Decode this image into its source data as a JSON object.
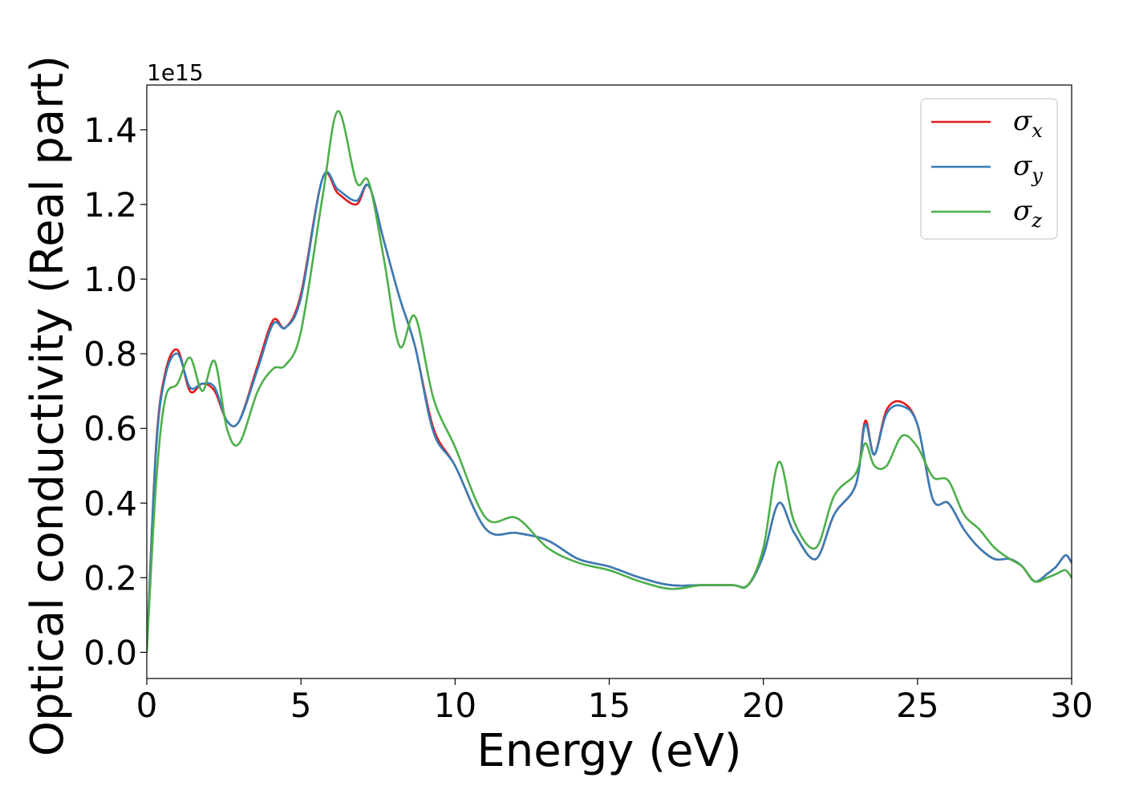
{
  "chart_data": {
    "type": "line",
    "xlabel": "Energy (eV)",
    "ylabel": "Optical conductivity (Real part)",
    "y_offset_text": "1e15",
    "xlim": [
      0,
      30
    ],
    "ylim": [
      -0.07,
      1.52
    ],
    "y_scale_factor": 1000000000000000.0,
    "x_ticks": [
      0,
      5,
      10,
      15,
      20,
      25,
      30
    ],
    "x_tick_labels": [
      "0",
      "5",
      "10",
      "15",
      "20",
      "25",
      "30"
    ],
    "y_ticks": [
      0.0,
      0.2,
      0.4,
      0.6,
      0.8,
      1.0,
      1.2,
      1.4
    ],
    "y_tick_labels": [
      "0.0",
      "0.2",
      "0.4",
      "0.6",
      "0.8",
      "1.0",
      "1.2",
      "1.4"
    ],
    "grid": false,
    "legend_position": "top-right",
    "x": [
      0,
      0.3,
      0.6,
      1.0,
      1.4,
      1.8,
      2.2,
      2.6,
      3.0,
      3.6,
      4.1,
      4.5,
      5.0,
      5.7,
      6.2,
      6.8,
      7.2,
      7.7,
      8.2,
      8.7,
      9.3,
      10.0,
      11.0,
      12.0,
      13.0,
      14.0,
      15.0,
      16.0,
      17.0,
      18.0,
      19.0,
      19.5,
      20.0,
      20.5,
      21.0,
      21.7,
      22.3,
      23.0,
      23.3,
      23.6,
      24.0,
      24.5,
      25.0,
      25.5,
      26.0,
      26.5,
      27.0,
      27.5,
      28.0,
      28.4,
      28.8,
      29.2,
      29.5,
      29.8,
      30.0
    ],
    "series": [
      {
        "name": "σ",
        "subscript": "x",
        "color": "#e41a1c",
        "values": [
          0.0,
          0.55,
          0.75,
          0.81,
          0.7,
          0.72,
          0.7,
          0.62,
          0.62,
          0.77,
          0.89,
          0.87,
          0.96,
          1.27,
          1.23,
          1.2,
          1.25,
          1.1,
          0.95,
          0.82,
          0.6,
          0.5,
          0.33,
          0.32,
          0.3,
          0.25,
          0.23,
          0.2,
          0.18,
          0.18,
          0.18,
          0.18,
          0.26,
          0.4,
          0.32,
          0.25,
          0.37,
          0.45,
          0.62,
          0.53,
          0.65,
          0.67,
          0.61,
          0.41,
          0.4,
          0.33,
          0.28,
          0.25,
          0.25,
          0.23,
          0.19,
          0.21,
          0.23,
          0.26,
          0.24
        ]
      },
      {
        "name": "σ",
        "subscript": "y",
        "color": "#377eb8",
        "values": [
          0.0,
          0.54,
          0.74,
          0.8,
          0.71,
          0.72,
          0.71,
          0.62,
          0.62,
          0.76,
          0.88,
          0.87,
          0.95,
          1.27,
          1.24,
          1.21,
          1.25,
          1.1,
          0.95,
          0.82,
          0.59,
          0.5,
          0.33,
          0.32,
          0.3,
          0.25,
          0.23,
          0.2,
          0.18,
          0.18,
          0.18,
          0.18,
          0.26,
          0.4,
          0.32,
          0.25,
          0.37,
          0.45,
          0.61,
          0.53,
          0.64,
          0.66,
          0.61,
          0.41,
          0.4,
          0.33,
          0.28,
          0.25,
          0.25,
          0.23,
          0.19,
          0.21,
          0.23,
          0.26,
          0.24
        ]
      },
      {
        "name": "σ",
        "subscript": "z",
        "color": "#4daf4a",
        "values": [
          0.0,
          0.45,
          0.68,
          0.72,
          0.79,
          0.7,
          0.78,
          0.6,
          0.56,
          0.7,
          0.76,
          0.77,
          0.86,
          1.22,
          1.45,
          1.26,
          1.26,
          1.05,
          0.82,
          0.9,
          0.68,
          0.55,
          0.36,
          0.36,
          0.28,
          0.24,
          0.22,
          0.19,
          0.17,
          0.18,
          0.18,
          0.18,
          0.28,
          0.51,
          0.35,
          0.28,
          0.42,
          0.48,
          0.56,
          0.5,
          0.5,
          0.58,
          0.55,
          0.47,
          0.46,
          0.37,
          0.33,
          0.28,
          0.25,
          0.23,
          0.19,
          0.2,
          0.21,
          0.22,
          0.2
        ]
      }
    ]
  }
}
